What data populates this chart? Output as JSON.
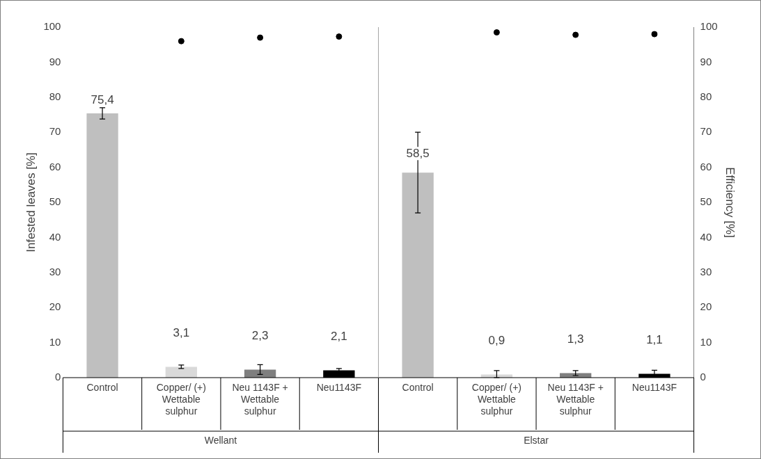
{
  "chart_data": {
    "type": "bar",
    "ylabel": "Infested leaves [%]",
    "y2label": "Efficiency [%]",
    "categories": [
      "Control",
      "Copper/ (+) Wettable sulphur",
      "Neu 1143F + Wettable sulphur",
      "Neu1143F",
      "Control",
      "Copper/ (+) Wettable sulphur",
      "Neu 1143F + Wettable sulphur",
      "Neu1143F"
    ],
    "annotations": [
      "Wellant",
      "Elstar"
    ],
    "series": [
      {
        "type": "bar",
        "colors": [
          "#bfbfbf",
          "#d9d9d9",
          "#7f7f7f",
          "#000000",
          "#bfbfbf",
          "#d9d9d9",
          "#7f7f7f",
          "#000000"
        ],
        "values": [
          75.4,
          3.1,
          2.3,
          2.1,
          58.5,
          0.9,
          1.3,
          1.1
        ],
        "errors": [
          [
            73.8,
            77.0
          ],
          [
            2.6,
            3.6
          ],
          [
            0.9,
            3.7
          ],
          [
            1.6,
            2.6
          ],
          [
            47.0,
            70.0
          ],
          [
            0.0,
            2.0
          ],
          [
            0.6,
            2.0
          ],
          [
            0.1,
            2.1
          ]
        ],
        "value_labels": [
          "75,4",
          "3,1",
          "2,3",
          "2,1",
          "58,5",
          "0,9",
          "1,3",
          "1,1"
        ]
      },
      {
        "type": "scatter",
        "axis": "y2",
        "color": "#000000",
        "marker": "circle",
        "values": [
          null,
          96.0,
          97.0,
          97.3,
          null,
          98.5,
          97.8,
          98.0
        ]
      }
    ],
    "ylim": [
      0,
      100
    ],
    "yticks": [
      0,
      10,
      20,
      30,
      40,
      50,
      60,
      70,
      80,
      90,
      100
    ],
    "y2lim": [
      0,
      100
    ],
    "y2ticks": [
      0,
      10,
      20,
      30,
      40,
      50,
      60,
      70,
      80,
      90,
      100
    ],
    "grid": false,
    "legend": false
  }
}
